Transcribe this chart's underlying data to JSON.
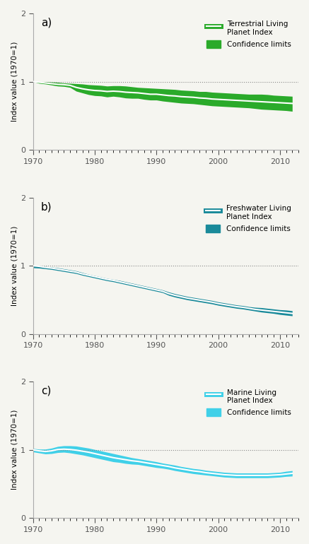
{
  "years": [
    1970,
    1971,
    1972,
    1973,
    1974,
    1975,
    1976,
    1977,
    1978,
    1979,
    1980,
    1981,
    1982,
    1983,
    1984,
    1985,
    1986,
    1987,
    1988,
    1989,
    1990,
    1991,
    1992,
    1993,
    1994,
    1995,
    1996,
    1997,
    1998,
    1999,
    2000,
    2001,
    2002,
    2003,
    2004,
    2005,
    2006,
    2007,
    2008,
    2009,
    2010,
    2011,
    2012
  ],
  "terrestrial_index": [
    1.0,
    0.99,
    0.98,
    0.97,
    0.96,
    0.955,
    0.945,
    0.915,
    0.895,
    0.88,
    0.87,
    0.865,
    0.855,
    0.86,
    0.855,
    0.845,
    0.84,
    0.835,
    0.825,
    0.815,
    0.815,
    0.805,
    0.795,
    0.79,
    0.78,
    0.775,
    0.77,
    0.76,
    0.755,
    0.745,
    0.74,
    0.735,
    0.73,
    0.725,
    0.72,
    0.715,
    0.71,
    0.705,
    0.7,
    0.695,
    0.69,
    0.685,
    0.68
  ],
  "terrestrial_upper": [
    1.0,
    1.0,
    1.0,
    0.995,
    0.99,
    0.98,
    0.975,
    0.97,
    0.965,
    0.955,
    0.95,
    0.945,
    0.935,
    0.94,
    0.94,
    0.935,
    0.925,
    0.915,
    0.91,
    0.905,
    0.9,
    0.895,
    0.89,
    0.885,
    0.875,
    0.87,
    0.865,
    0.855,
    0.855,
    0.845,
    0.84,
    0.835,
    0.83,
    0.825,
    0.82,
    0.815,
    0.815,
    0.815,
    0.81,
    0.8,
    0.795,
    0.79,
    0.785
  ],
  "terrestrial_lower": [
    1.0,
    0.975,
    0.965,
    0.95,
    0.935,
    0.93,
    0.915,
    0.86,
    0.835,
    0.81,
    0.795,
    0.79,
    0.775,
    0.785,
    0.775,
    0.76,
    0.755,
    0.755,
    0.74,
    0.73,
    0.73,
    0.715,
    0.705,
    0.695,
    0.685,
    0.68,
    0.675,
    0.665,
    0.655,
    0.645,
    0.64,
    0.635,
    0.63,
    0.625,
    0.62,
    0.615,
    0.605,
    0.595,
    0.59,
    0.585,
    0.58,
    0.575,
    0.565
  ],
  "freshwater_index": [
    1.0,
    0.99,
    0.975,
    0.965,
    0.95,
    0.935,
    0.92,
    0.905,
    0.88,
    0.86,
    0.84,
    0.82,
    0.8,
    0.785,
    0.765,
    0.745,
    0.725,
    0.705,
    0.685,
    0.665,
    0.645,
    0.625,
    0.59,
    0.565,
    0.545,
    0.525,
    0.51,
    0.495,
    0.48,
    0.465,
    0.445,
    0.43,
    0.415,
    0.4,
    0.39,
    0.375,
    0.36,
    0.35,
    0.34,
    0.33,
    0.32,
    0.31,
    0.3
  ],
  "freshwater_upper": [
    1.0,
    1.0,
    0.99,
    0.98,
    0.97,
    0.955,
    0.94,
    0.925,
    0.9,
    0.875,
    0.855,
    0.835,
    0.815,
    0.8,
    0.785,
    0.765,
    0.745,
    0.725,
    0.705,
    0.685,
    0.665,
    0.645,
    0.615,
    0.59,
    0.57,
    0.55,
    0.535,
    0.52,
    0.505,
    0.49,
    0.47,
    0.455,
    0.44,
    0.425,
    0.415,
    0.4,
    0.39,
    0.385,
    0.375,
    0.365,
    0.355,
    0.35,
    0.34
  ],
  "freshwater_lower": [
    0.97,
    0.965,
    0.955,
    0.945,
    0.93,
    0.915,
    0.9,
    0.885,
    0.86,
    0.84,
    0.82,
    0.8,
    0.78,
    0.765,
    0.745,
    0.725,
    0.705,
    0.685,
    0.665,
    0.645,
    0.625,
    0.605,
    0.565,
    0.54,
    0.52,
    0.5,
    0.485,
    0.47,
    0.455,
    0.44,
    0.42,
    0.405,
    0.39,
    0.375,
    0.365,
    0.35,
    0.335,
    0.32,
    0.31,
    0.3,
    0.285,
    0.275,
    0.265
  ],
  "marine_index": [
    1.0,
    0.985,
    0.975,
    0.985,
    1.005,
    1.01,
    1.005,
    0.995,
    0.98,
    0.965,
    0.945,
    0.925,
    0.905,
    0.885,
    0.87,
    0.855,
    0.84,
    0.83,
    0.815,
    0.8,
    0.785,
    0.77,
    0.755,
    0.735,
    0.72,
    0.705,
    0.69,
    0.68,
    0.665,
    0.655,
    0.645,
    0.635,
    0.63,
    0.625,
    0.625,
    0.625,
    0.625,
    0.625,
    0.625,
    0.63,
    0.635,
    0.645,
    0.655
  ],
  "marine_upper": [
    1.02,
    1.01,
    1.01,
    1.025,
    1.05,
    1.06,
    1.06,
    1.055,
    1.04,
    1.025,
    1.005,
    0.985,
    0.965,
    0.945,
    0.925,
    0.905,
    0.885,
    0.87,
    0.855,
    0.84,
    0.825,
    0.805,
    0.79,
    0.775,
    0.755,
    0.74,
    0.725,
    0.715,
    0.7,
    0.69,
    0.68,
    0.67,
    0.665,
    0.66,
    0.66,
    0.66,
    0.66,
    0.66,
    0.66,
    0.665,
    0.67,
    0.685,
    0.695
  ],
  "marine_lower": [
    0.97,
    0.955,
    0.94,
    0.945,
    0.96,
    0.965,
    0.955,
    0.94,
    0.925,
    0.905,
    0.885,
    0.865,
    0.845,
    0.825,
    0.815,
    0.8,
    0.79,
    0.785,
    0.77,
    0.755,
    0.74,
    0.73,
    0.715,
    0.695,
    0.68,
    0.665,
    0.65,
    0.64,
    0.63,
    0.62,
    0.61,
    0.6,
    0.595,
    0.59,
    0.59,
    0.59,
    0.59,
    0.59,
    0.59,
    0.595,
    0.6,
    0.61,
    0.615
  ],
  "terrestrial_band_color": "#2aaa2a",
  "freshwater_band_color": "#1a8a9a",
  "marine_band_color": "#40d0e8",
  "line_color": "#ffffff",
  "dotted_line_color": "#888888",
  "bg_color": "#f5f5f0",
  "panel_labels": [
    "a)",
    "b)",
    "c)"
  ],
  "legend_labels_index": [
    "Terrestrial Living\nPlanet Index",
    "Freshwater Living\nPlanet Index",
    "Marine Living\nPlanet Index"
  ],
  "legend_label_conf": "Confidence limits",
  "ylabel": "Index value (1970=1)",
  "xlim": [
    1970,
    2013
  ],
  "ylim": [
    0,
    2
  ]
}
